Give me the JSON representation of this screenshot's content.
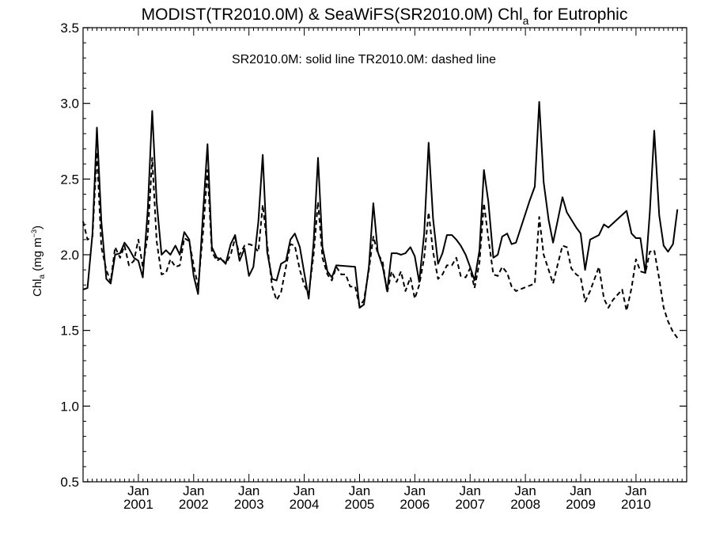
{
  "chart_data": {
    "type": "line",
    "title_main": "MODIST(TR2010.0M) & SeaWiFS(SR2010.0M)  Chl",
    "title_sub": "a",
    "title_tail": " for Eutrophic",
    "annotation": "SR2010.0M: solid line   TR2010.0M: dashed line",
    "ylabel": {
      "prefix": "Chl",
      "prefix_sub": "a",
      "middle": " (mg m",
      "sup": "−3",
      "suffix": ")"
    },
    "xlim": [
      2000.0,
      2010.917
    ],
    "ylim": [
      0.5,
      3.5
    ],
    "y_ticks": [
      {
        "value": 0.5,
        "label": "0.5"
      },
      {
        "value": 1.0,
        "label": "1.0"
      },
      {
        "value": 1.5,
        "label": "1.5"
      },
      {
        "value": 2.0,
        "label": "2.0"
      },
      {
        "value": 2.5,
        "label": "2.5"
      },
      {
        "value": 3.0,
        "label": "3.0"
      },
      {
        "value": 3.5,
        "label": "3.5"
      }
    ],
    "x_ticks": [
      {
        "value": 2001.0,
        "month": "Jan",
        "year": "2001"
      },
      {
        "value": 2002.0,
        "month": "Jan",
        "year": "2002"
      },
      {
        "value": 2003.0,
        "month": "Jan",
        "year": "2003"
      },
      {
        "value": 2004.0,
        "month": "Jan",
        "year": "2004"
      },
      {
        "value": 2005.0,
        "month": "Jan",
        "year": "2005"
      },
      {
        "value": 2006.0,
        "month": "Jan",
        "year": "2006"
      },
      {
        "value": 2007.0,
        "month": "Jan",
        "year": "2007"
      },
      {
        "value": 2008.0,
        "month": "Jan",
        "year": "2008"
      },
      {
        "value": 2009.0,
        "month": "Jan",
        "year": "2009"
      },
      {
        "value": 2010.0,
        "month": "Jan",
        "year": "2010"
      }
    ],
    "series": [
      {
        "name": "SR2010.0M",
        "style": "solid",
        "points": [
          [
            2000.0,
            1.77
          ],
          [
            2000.08,
            1.78
          ],
          [
            2000.17,
            2.14
          ],
          [
            2000.25,
            2.84
          ],
          [
            2000.33,
            2.22
          ],
          [
            2000.42,
            1.84
          ],
          [
            2000.5,
            1.81
          ],
          [
            2000.58,
            2.0
          ],
          [
            2000.67,
            2.01
          ],
          [
            2000.75,
            2.08
          ],
          [
            2000.83,
            2.04
          ],
          [
            2000.92,
            1.98
          ],
          [
            2001.0,
            1.96
          ],
          [
            2001.08,
            1.85
          ],
          [
            2001.17,
            2.3
          ],
          [
            2001.25,
            2.95
          ],
          [
            2001.33,
            2.35
          ],
          [
            2001.42,
            2.0
          ],
          [
            2001.5,
            2.03
          ],
          [
            2001.58,
            2.0
          ],
          [
            2001.67,
            2.06
          ],
          [
            2001.75,
            2.0
          ],
          [
            2001.83,
            2.15
          ],
          [
            2001.92,
            2.1
          ],
          [
            2002.0,
            1.86
          ],
          [
            2002.08,
            1.74
          ],
          [
            2002.17,
            2.28
          ],
          [
            2002.25,
            2.73
          ],
          [
            2002.33,
            2.05
          ],
          [
            2002.42,
            1.98
          ],
          [
            2002.5,
            1.97
          ],
          [
            2002.58,
            1.94
          ],
          [
            2002.67,
            2.07
          ],
          [
            2002.75,
            2.13
          ],
          [
            2002.83,
            1.96
          ],
          [
            2002.92,
            2.04
          ],
          [
            2003.0,
            1.86
          ],
          [
            2003.08,
            1.92
          ],
          [
            2003.17,
            2.22
          ],
          [
            2003.25,
            2.66
          ],
          [
            2003.33,
            2.02
          ],
          [
            2003.42,
            1.84
          ],
          [
            2003.5,
            1.83
          ],
          [
            2003.58,
            1.94
          ],
          [
            2003.67,
            1.96
          ],
          [
            2003.75,
            2.1
          ],
          [
            2003.83,
            2.14
          ],
          [
            2003.92,
            2.05
          ],
          [
            2004.0,
            1.88
          ],
          [
            2004.08,
            1.71
          ],
          [
            2004.17,
            2.08
          ],
          [
            2004.25,
            2.64
          ],
          [
            2004.33,
            2.05
          ],
          [
            2004.42,
            1.89
          ],
          [
            2004.5,
            1.85
          ],
          [
            2004.58,
            1.93
          ],
          [
            2004.92,
            1.92
          ],
          [
            2005.0,
            1.65
          ],
          [
            2005.08,
            1.67
          ],
          [
            2005.17,
            1.92
          ],
          [
            2005.25,
            2.34
          ],
          [
            2005.33,
            2.02
          ],
          [
            2005.42,
            1.92
          ],
          [
            2005.5,
            1.76
          ],
          [
            2005.58,
            2.01
          ],
          [
            2005.67,
            2.01
          ],
          [
            2005.75,
            2.0
          ],
          [
            2005.83,
            2.01
          ],
          [
            2005.92,
            2.05
          ],
          [
            2006.0,
            1.99
          ],
          [
            2006.08,
            1.82
          ],
          [
            2006.17,
            2.14
          ],
          [
            2006.25,
            2.74
          ],
          [
            2006.33,
            2.24
          ],
          [
            2006.42,
            1.94
          ],
          [
            2006.5,
            2.01
          ],
          [
            2006.58,
            2.13
          ],
          [
            2006.67,
            2.13
          ],
          [
            2006.75,
            2.1
          ],
          [
            2006.83,
            2.06
          ],
          [
            2006.92,
            2.0
          ],
          [
            2007.0,
            1.92
          ],
          [
            2007.08,
            1.83
          ],
          [
            2007.17,
            2.03
          ],
          [
            2007.25,
            2.56
          ],
          [
            2007.33,
            2.35
          ],
          [
            2007.42,
            1.98
          ],
          [
            2007.5,
            2.0
          ],
          [
            2007.58,
            2.12
          ],
          [
            2007.67,
            2.14
          ],
          [
            2007.75,
            2.07
          ],
          [
            2007.83,
            2.08
          ],
          [
            2008.08,
            2.36
          ],
          [
            2008.17,
            2.45
          ],
          [
            2008.25,
            3.01
          ],
          [
            2008.33,
            2.48
          ],
          [
            2008.42,
            2.23
          ],
          [
            2008.5,
            2.08
          ],
          [
            2008.58,
            2.22
          ],
          [
            2008.67,
            2.38
          ],
          [
            2008.75,
            2.28
          ],
          [
            2008.92,
            2.18
          ],
          [
            2009.0,
            2.14
          ],
          [
            2009.08,
            1.9
          ],
          [
            2009.17,
            2.1
          ],
          [
            2009.33,
            2.13
          ],
          [
            2009.42,
            2.2
          ],
          [
            2009.5,
            2.18
          ],
          [
            2009.83,
            2.29
          ],
          [
            2009.92,
            2.14
          ],
          [
            2010.0,
            2.11
          ],
          [
            2010.08,
            2.11
          ],
          [
            2010.17,
            1.88
          ],
          [
            2010.25,
            2.28
          ],
          [
            2010.33,
            2.82
          ],
          [
            2010.42,
            2.26
          ],
          [
            2010.5,
            2.06
          ],
          [
            2010.58,
            2.02
          ],
          [
            2010.67,
            2.07
          ],
          [
            2010.75,
            2.3
          ]
        ]
      },
      {
        "name": "TR2010.0M",
        "style": "dashed",
        "points": [
          [
            2000.0,
            2.22
          ],
          [
            2000.08,
            2.1
          ],
          [
            2000.17,
            2.12
          ],
          [
            2000.25,
            2.68
          ],
          [
            2000.33,
            2.05
          ],
          [
            2000.42,
            1.9
          ],
          [
            2000.5,
            1.82
          ],
          [
            2000.58,
            2.05
          ],
          [
            2000.67,
            1.98
          ],
          [
            2000.75,
            2.06
          ],
          [
            2000.83,
            1.93
          ],
          [
            2000.92,
            1.96
          ],
          [
            2001.0,
            2.1
          ],
          [
            2001.08,
            1.92
          ],
          [
            2001.17,
            2.13
          ],
          [
            2001.25,
            2.64
          ],
          [
            2001.33,
            2.09
          ],
          [
            2001.42,
            1.87
          ],
          [
            2001.5,
            1.88
          ],
          [
            2001.58,
            1.97
          ],
          [
            2001.67,
            1.92
          ],
          [
            2001.75,
            1.93
          ],
          [
            2001.83,
            2.11
          ],
          [
            2001.92,
            2.09
          ],
          [
            2002.0,
            1.93
          ],
          [
            2002.08,
            1.79
          ],
          [
            2002.17,
            2.15
          ],
          [
            2002.25,
            2.56
          ],
          [
            2002.33,
            2.02
          ],
          [
            2002.42,
            1.96
          ],
          [
            2002.5,
            1.98
          ],
          [
            2002.58,
            1.94
          ],
          [
            2002.67,
            2.0
          ],
          [
            2002.75,
            2.11
          ],
          [
            2002.83,
            2.0
          ],
          [
            2002.92,
            2.06
          ],
          [
            2003.0,
            2.07
          ],
          [
            2003.08,
            2.06
          ],
          [
            2003.17,
            2.02
          ],
          [
            2003.25,
            2.33
          ],
          [
            2003.33,
            2.07
          ],
          [
            2003.42,
            1.79
          ],
          [
            2003.5,
            1.7
          ],
          [
            2003.58,
            1.75
          ],
          [
            2003.67,
            1.92
          ],
          [
            2003.75,
            2.07
          ],
          [
            2003.83,
            2.06
          ],
          [
            2003.92,
            1.9
          ],
          [
            2004.0,
            1.8
          ],
          [
            2004.08,
            1.74
          ],
          [
            2004.17,
            2.0
          ],
          [
            2004.25,
            2.35
          ],
          [
            2004.33,
            1.98
          ],
          [
            2004.42,
            1.87
          ],
          [
            2004.5,
            1.83
          ],
          [
            2004.58,
            1.92
          ],
          [
            2004.67,
            1.87
          ],
          [
            2004.75,
            1.87
          ],
          [
            2004.83,
            1.79
          ],
          [
            2004.92,
            1.79
          ],
          [
            2005.0,
            1.66
          ],
          [
            2005.08,
            1.7
          ],
          [
            2005.17,
            1.9
          ],
          [
            2005.25,
            2.12
          ],
          [
            2005.33,
            2.01
          ],
          [
            2005.42,
            1.95
          ],
          [
            2005.5,
            1.75
          ],
          [
            2005.58,
            1.89
          ],
          [
            2005.67,
            1.82
          ],
          [
            2005.75,
            1.89
          ],
          [
            2005.83,
            1.76
          ],
          [
            2005.92,
            1.85
          ],
          [
            2006.0,
            1.71
          ],
          [
            2006.08,
            1.8
          ],
          [
            2006.17,
            1.98
          ],
          [
            2006.25,
            2.28
          ],
          [
            2006.33,
            2.02
          ],
          [
            2006.42,
            1.84
          ],
          [
            2006.5,
            1.87
          ],
          [
            2006.58,
            1.93
          ],
          [
            2006.67,
            1.93
          ],
          [
            2006.75,
            1.98
          ],
          [
            2006.83,
            1.86
          ],
          [
            2006.92,
            1.85
          ],
          [
            2007.0,
            1.91
          ],
          [
            2007.08,
            1.78
          ],
          [
            2007.17,
            1.95
          ],
          [
            2007.25,
            2.34
          ],
          [
            2007.33,
            2.11
          ],
          [
            2007.42,
            1.87
          ],
          [
            2007.5,
            1.86
          ],
          [
            2007.58,
            1.92
          ],
          [
            2007.67,
            1.88
          ],
          [
            2007.75,
            1.79
          ],
          [
            2007.83,
            1.76
          ],
          [
            2008.17,
            1.81
          ],
          [
            2008.25,
            2.25
          ],
          [
            2008.33,
            2.0
          ],
          [
            2008.42,
            1.9
          ],
          [
            2008.5,
            1.81
          ],
          [
            2008.58,
            1.93
          ],
          [
            2008.67,
            2.06
          ],
          [
            2008.75,
            2.05
          ],
          [
            2008.83,
            1.91
          ],
          [
            2008.92,
            1.87
          ],
          [
            2009.0,
            1.85
          ],
          [
            2009.08,
            1.69
          ],
          [
            2009.17,
            1.76
          ],
          [
            2009.33,
            1.92
          ],
          [
            2009.42,
            1.71
          ],
          [
            2009.5,
            1.65
          ],
          [
            2009.58,
            1.7
          ],
          [
            2009.75,
            1.77
          ],
          [
            2009.83,
            1.63
          ],
          [
            2009.92,
            1.78
          ],
          [
            2010.0,
            1.97
          ],
          [
            2010.08,
            1.89
          ],
          [
            2010.17,
            1.88
          ],
          [
            2010.25,
            2.02
          ],
          [
            2010.33,
            2.03
          ],
          [
            2010.42,
            1.84
          ],
          [
            2010.5,
            1.65
          ],
          [
            2010.58,
            1.56
          ],
          [
            2010.67,
            1.49
          ],
          [
            2010.75,
            1.45
          ]
        ]
      }
    ]
  }
}
